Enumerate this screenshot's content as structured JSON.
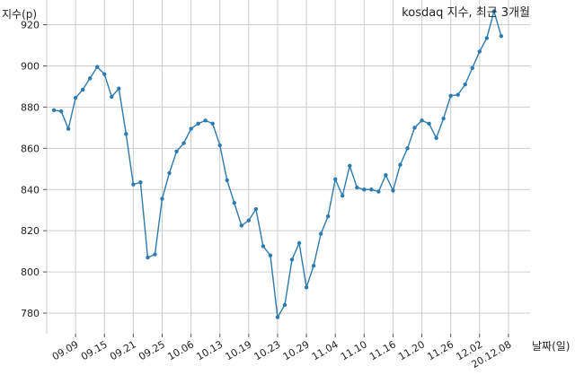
{
  "chart_data": {
    "type": "line",
    "title": "kosdaq 지수, 최근 3개월",
    "xlabel": "날짜(일)",
    "ylabel": "지수(p)",
    "ylim": [
      770,
      932
    ],
    "yticks": [
      780,
      800,
      820,
      840,
      860,
      880,
      900,
      920
    ],
    "grid": true,
    "x_tick_labels": [
      "09.09",
      "09.15",
      "09.21",
      "09.25",
      "10.06",
      "10.13",
      "10.19",
      "10.23",
      "10.29",
      "11.04",
      "11.10",
      "11.16",
      "11.20",
      "11.26",
      "12.02",
      "20.12.08"
    ],
    "x_tick_positions": [
      3,
      7,
      11,
      15,
      19,
      23,
      27,
      31,
      35,
      39,
      43,
      47,
      51,
      55,
      59,
      63
    ],
    "x_range": [
      -1.0,
      66.0
    ],
    "series": [
      {
        "color": "#2b7bb0",
        "values": [
          878.5,
          878,
          869.5,
          884.5,
          888.5,
          894,
          899.5,
          896,
          885,
          889,
          867,
          842.5,
          843.5,
          807,
          808.5,
          835.5,
          848,
          858.5,
          862.5,
          869.5,
          872,
          873.5,
          872,
          861.5,
          844.5,
          833.5,
          822.5,
          825,
          830.5,
          812.5,
          808,
          778,
          784,
          806,
          814,
          792.5,
          803,
          818.5,
          827,
          845,
          837,
          851.5,
          841,
          840,
          840,
          839,
          847,
          839.5,
          852,
          860,
          870,
          873.5,
          872,
          865,
          874.5,
          885.5,
          886,
          891,
          899,
          907,
          913.5,
          926.5,
          914.5
        ]
      }
    ]
  }
}
